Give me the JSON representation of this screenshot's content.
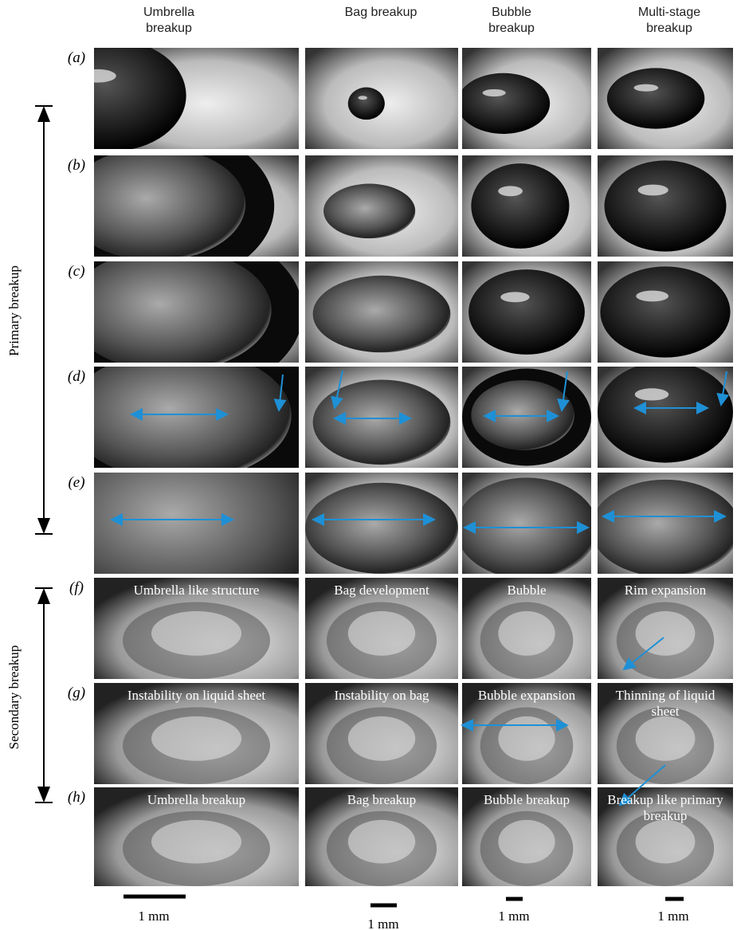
{
  "column_headers": [
    "Umbrella breakup",
    "Bag breakup",
    "Bubble breakup",
    "Multi-stage breakup"
  ],
  "row_labels": [
    "(a)",
    "(b)",
    "(c)",
    "(d)",
    "(e)",
    "(f)",
    "(g)",
    "(h)"
  ],
  "side_labels": [
    "Primary breakup",
    "Secondary breakup"
  ],
  "panel_captions": {
    "f": [
      "Umbrella like structure",
      "Bag development",
      "Bubble",
      "Rim expansion"
    ],
    "g": [
      "Instability on liquid sheet",
      "Instability on bag",
      "Bubble expansion",
      "Thinning of liquid sheet"
    ],
    "h": [
      "Umbrella breakup",
      "Bag breakup",
      "Bubble breakup",
      "Breakup like primary breakup"
    ]
  },
  "scale_bars": [
    "1 mm",
    "1 mm",
    "1 mm",
    "1 mm"
  ]
}
